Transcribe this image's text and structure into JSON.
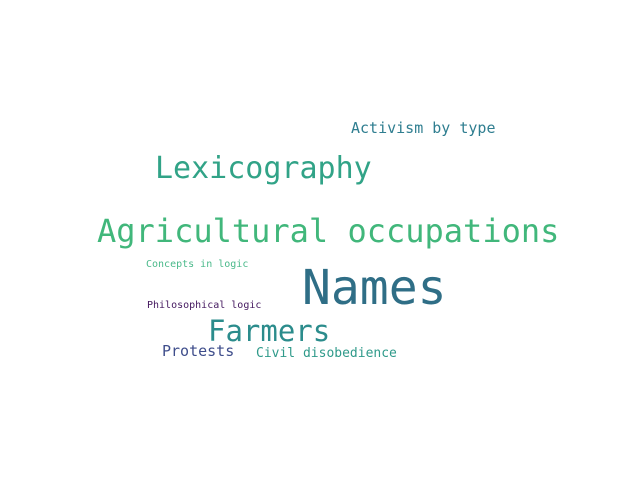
{
  "words": {
    "names": "Names",
    "agricultural_occupations": "Agricultural occupations",
    "lexicography": "Lexicography",
    "farmers": "Farmers",
    "activism_by_type": "Activism by type",
    "protests": "Protests",
    "civil_disobedience": "Civil disobedience",
    "concepts_in_logic": "Concepts in logic",
    "philosophical_logic": "Philosophical logic"
  }
}
